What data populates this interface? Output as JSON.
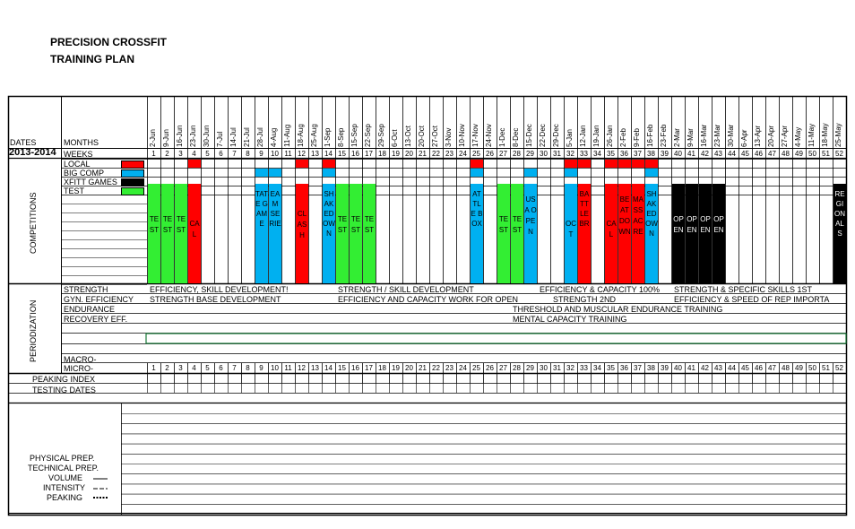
{
  "header": {
    "title_line1": "PRECISION CROSSFIT",
    "title_line2": "TRAINING PLAN"
  },
  "labels": {
    "dates": "DATES",
    "months": "MONTHS",
    "year": "2013-2014",
    "weeks": "WEEKS",
    "competitions": "COMPETITIONS",
    "periodization": "PERIODIZATION",
    "macro": "MACRO-",
    "micro": "MICRO-",
    "peaking_index": "PEAKING INDEX",
    "testing_dates": "TESTING DATES"
  },
  "legend": [
    {
      "label": "LOCAL",
      "color": "#ff0000"
    },
    {
      "label": "BIG COMP",
      "color": "#00b0f0"
    },
    {
      "label": "XFITT GAMES",
      "color": "#000000"
    },
    {
      "label": "TEST",
      "color": "#33ee33"
    }
  ],
  "period_rows": [
    "STRENGTH",
    "GYN. EFFICIENCY",
    "ENDURANCE",
    "RECOVERY EFF."
  ],
  "dates": [
    "2-Jun",
    "9-Jun",
    "16-Jun",
    "23-Jun",
    "30-Jun",
    "7-Jul",
    "14-Jul",
    "21-Jul",
    "28-Jul",
    "4-Aug",
    "11-Aug",
    "18-Aug",
    "25-Aug",
    "1-Sep",
    "8-Sep",
    "15-Sep",
    "22-Sep",
    "29-Sep",
    "6-Oct",
    "13-Oct",
    "20-Oct",
    "27-Oct",
    "3-Nov",
    "10-Nov",
    "17-Nov",
    "24-Nov",
    "1-Dec",
    "8-Dec",
    "15-Dec",
    "22-Dec",
    "29-Dec",
    "5-Jan",
    "12-Jan",
    "19-Jan",
    "26-Jan",
    "2-Feb",
    "9-Feb",
    "16-Feb",
    "23-Feb",
    "2-Mar",
    "9-Mar",
    "16-Mar",
    "23-Mar",
    "30-Mar",
    "6-Apr",
    "13-Apr",
    "20-Apr",
    "27-Apr",
    "4-May",
    "11-May",
    "18-May",
    "25-May"
  ],
  "weeks": [
    "1",
    "2",
    "3",
    "4",
    "5",
    "6",
    "7",
    "8",
    "9",
    "10",
    "11",
    "12",
    "13",
    "14",
    "15",
    "16",
    "17",
    "18",
    "19",
    "20",
    "21",
    "22",
    "23",
    "24",
    "25",
    "26",
    "27",
    "28",
    "29",
    "30",
    "31",
    "32",
    "33",
    "34",
    "35",
    "36",
    "37",
    "38",
    "39",
    "40",
    "41",
    "42",
    "43",
    "44",
    "45",
    "46",
    "47",
    "48",
    "49",
    "50",
    "51",
    "52"
  ],
  "small_cells": [
    {
      "row": 0,
      "week": 4,
      "color": "#ff0000"
    },
    {
      "row": 0,
      "week": 12,
      "color": "#ff0000"
    },
    {
      "row": 0,
      "week": 14,
      "color": "#ff0000"
    },
    {
      "row": 0,
      "week": 25,
      "color": "#ff0000"
    },
    {
      "row": 0,
      "week": 32,
      "color": "#ff0000"
    },
    {
      "row": 0,
      "week": 33,
      "color": "#ff0000"
    },
    {
      "row": 0,
      "week": 35,
      "color": "#ff0000"
    },
    {
      "row": 0,
      "week": 36,
      "color": "#ff0000"
    },
    {
      "row": 0,
      "week": 37,
      "color": "#ff0000"
    },
    {
      "row": 0,
      "week": 38,
      "color": "#ff0000"
    },
    {
      "row": 1,
      "week": 9,
      "color": "#00b0f0"
    },
    {
      "row": 1,
      "week": 10,
      "color": "#00b0f0"
    },
    {
      "row": 1,
      "week": 14,
      "color": "#00b0f0"
    },
    {
      "row": 1,
      "week": 25,
      "color": "#00b0f0"
    },
    {
      "row": 1,
      "week": 29,
      "color": "#00b0f0"
    },
    {
      "row": 1,
      "week": 32,
      "color": "#00b0f0"
    },
    {
      "row": 1,
      "week": 38,
      "color": "#00b0f0"
    }
  ],
  "events": [
    {
      "week": 1,
      "color": "#33ee33",
      "text": "TEST",
      "ink": "#000"
    },
    {
      "week": 2,
      "color": "#33ee33",
      "text": "TEST",
      "ink": "#000"
    },
    {
      "week": 3,
      "color": "#33ee33",
      "text": "TEST",
      "ink": "#000"
    },
    {
      "week": 4,
      "color": "#ff0000",
      "text": "CAL",
      "ink": "#000"
    },
    {
      "week": 9,
      "color": "#00b0f0",
      "text": "TATE GAME",
      "ink": "#000"
    },
    {
      "week": 10,
      "color": "#00b0f0",
      "text": "EAM SERIE",
      "ink": "#000"
    },
    {
      "week": 12,
      "color": "#ff0000",
      "text": "CLASH",
      "ink": "#000"
    },
    {
      "week": 14,
      "color": "#00b0f0",
      "text": "SHAKEDOWN",
      "ink": "#000"
    },
    {
      "week": 15,
      "color": "#33ee33",
      "text": "TEST",
      "ink": "#000"
    },
    {
      "week": 16,
      "color": "#33ee33",
      "text": "TEST",
      "ink": "#000"
    },
    {
      "week": 17,
      "color": "#33ee33",
      "text": "TEST",
      "ink": "#000"
    },
    {
      "week": 25,
      "color": "#00b0f0",
      "text": "ATTLE BOX",
      "ink": "#000"
    },
    {
      "week": 27,
      "color": "#33ee33",
      "text": "TEST",
      "ink": "#000"
    },
    {
      "week": 28,
      "color": "#33ee33",
      "text": "TEST",
      "ink": "#000"
    },
    {
      "week": 29,
      "color": "#00b0f0",
      "text": "USA OPEN",
      "ink": "#000"
    },
    {
      "week": 32,
      "color": "#00b0f0",
      "text": "OCT",
      "ink": "#000"
    },
    {
      "week": 33,
      "color": "#ff0000",
      "text": "BATTLE BR",
      "ink": "#000"
    },
    {
      "week": 35,
      "color": "#ff0000",
      "text": "CAL",
      "ink": "#000"
    },
    {
      "week": 36,
      "color": "#ff0000",
      "text": "BEATDOWN",
      "ink": "#000"
    },
    {
      "week": 37,
      "color": "#ff0000",
      "text": "MASSACRE",
      "ink": "#000"
    },
    {
      "week": 38,
      "color": "#00b0f0",
      "text": "SHAKEDOWN",
      "ink": "#000"
    },
    {
      "week": 40,
      "color": "#000000",
      "text": "OPEN",
      "ink": "#fff"
    },
    {
      "week": 41,
      "color": "#000000",
      "text": "OPEN",
      "ink": "#fff"
    },
    {
      "week": 42,
      "color": "#000000",
      "text": "OPEN",
      "ink": "#fff"
    },
    {
      "week": 43,
      "color": "#000000",
      "text": "OPEN",
      "ink": "#fff"
    },
    {
      "week": 52,
      "color": "#000000",
      "text": "REGIONALS",
      "ink": "#fff"
    }
  ],
  "periodization_text": [
    {
      "row": 0,
      "week": 1,
      "text": "EFFICIENCY, SKILL DEVELOPMENT!"
    },
    {
      "row": 0,
      "week": 15,
      "text": "STRENGTH / SKILL DEVELOPMENT"
    },
    {
      "row": 0,
      "week": 30,
      "text": "EFFICIENCY & CAPACITY 100%"
    },
    {
      "row": 0,
      "week": 40,
      "text": "STRENGTH & SPECIFIC SKILLS 1ST"
    },
    {
      "row": 1,
      "week": 1,
      "text": "STRENGTH BASE DEVELOPMENT"
    },
    {
      "row": 1,
      "week": 15,
      "text": "EFFICIENCY AND CAPACITY WORK FOR OPEN"
    },
    {
      "row": 1,
      "week": 31,
      "text": "STRENGTH 2ND"
    },
    {
      "row": 1,
      "week": 40,
      "text": "EFFICIENCY & SPEED OF REP IMPORTA"
    },
    {
      "row": 2,
      "week": 28,
      "text": "THRESHOLD AND MUSCULAR ENDURANCE TRAINING"
    },
    {
      "row": 3,
      "week": 28,
      "text": "MENTAL CAPACITY TRAINING"
    }
  ],
  "bottom_legend": [
    "PHYSICAL PREP.",
    "TECHNICAL PREP.",
    "VOLUME",
    "INTENSITY",
    "PEAKING"
  ]
}
